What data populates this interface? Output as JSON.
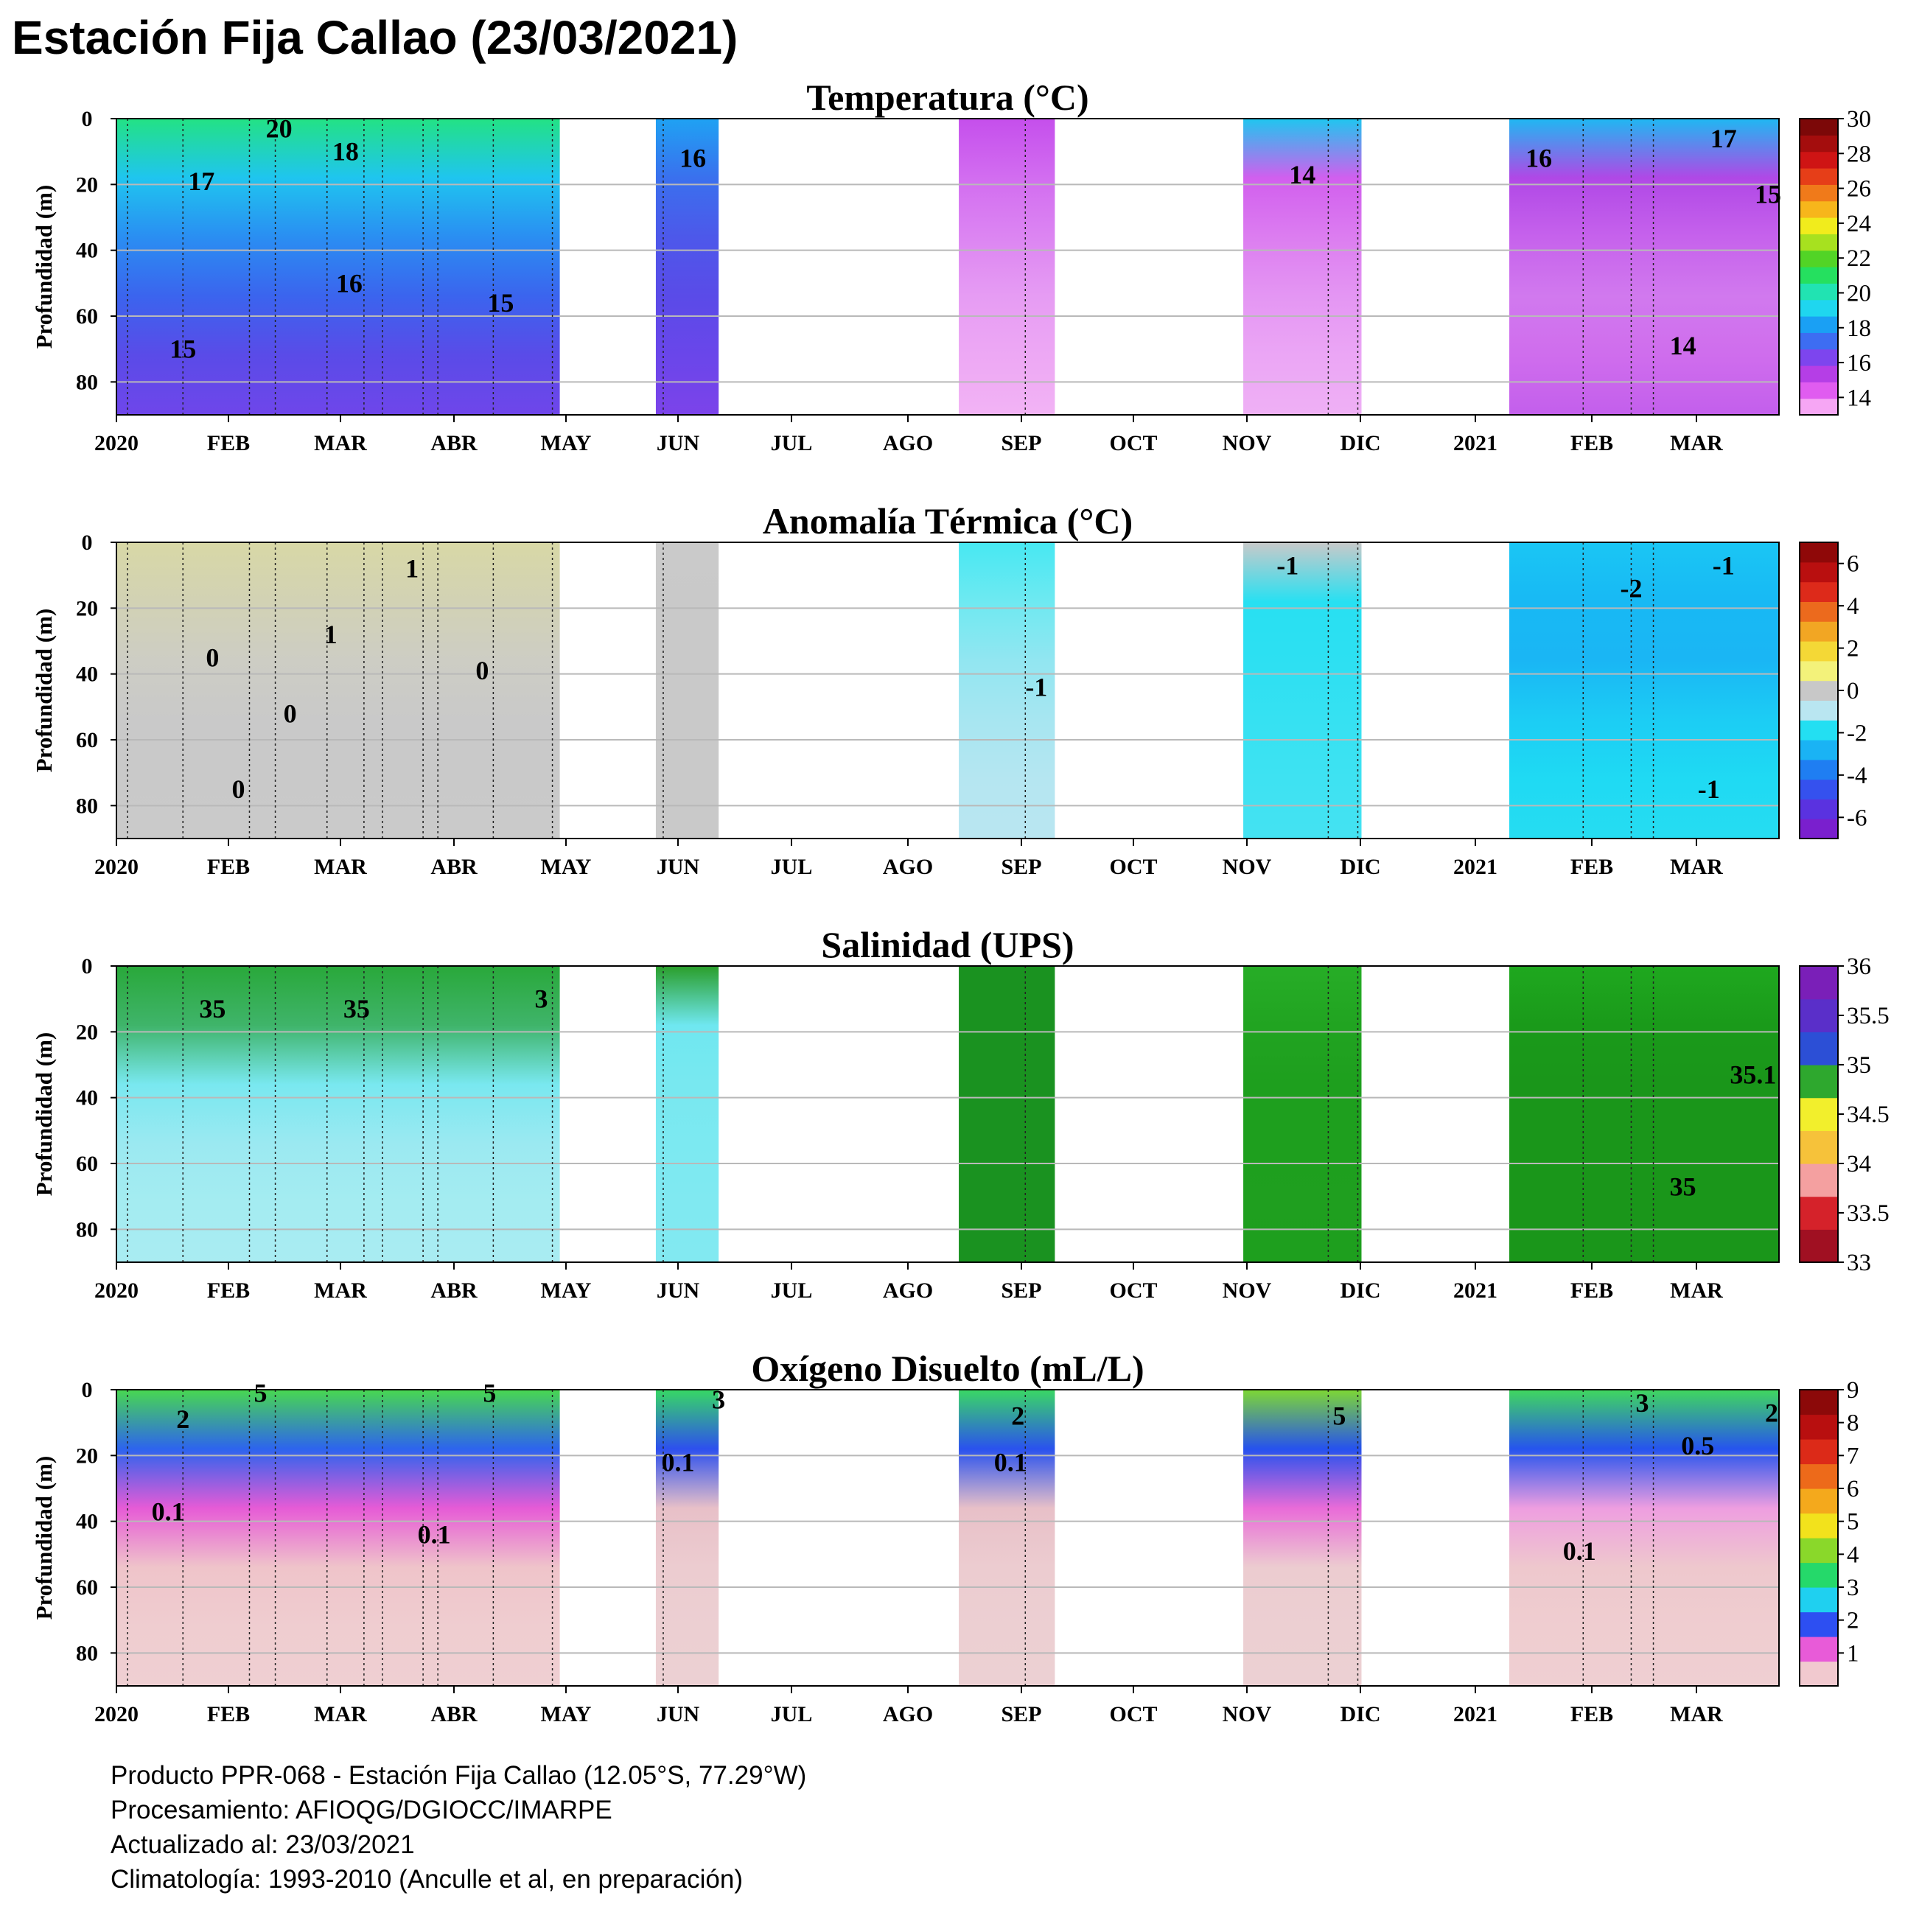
{
  "title": "Estación Fija Callao (23/03/2021)",
  "footer": [
    "Producto PPR-068 - Estación Fija Callao (12.05°S, 77.29°W)",
    "Procesamiento: AFIOQG/DGIOCC/IMARPE",
    "Actualizado al: 23/03/2021",
    "Climatología: 1993-2010 (Anculle et al, en preparación)"
  ],
  "chart_data": [
    {
      "type": "heatmap",
      "title": "Temperatura (°C)",
      "ylabel": "Profundidad (m)",
      "x_ticks": [
        "2020",
        "FEB",
        "MAR",
        "ABR",
        "MAY",
        "JUN",
        "JUL",
        "AGO",
        "SEP",
        "OCT",
        "NOV",
        "DIC",
        "2021",
        "FEB",
        "MAR"
      ],
      "y_ticks": [
        "0",
        "20",
        "40",
        "60",
        "80"
      ],
      "ylim": [
        90,
        0
      ],
      "colorbar": {
        "min": 13,
        "max": 30,
        "ticks": [
          "14",
          "16",
          "18",
          "20",
          "22",
          "24",
          "26",
          "28",
          "30"
        ],
        "colors": [
          "#f6a6f4",
          "#e05cf0",
          "#b53ee6",
          "#7d45ee",
          "#3d6df2",
          "#1aa0f4",
          "#1fd6ef",
          "#21e3b2",
          "#25e05f",
          "#52d426",
          "#a7e11f",
          "#f1ec1c",
          "#f7b61b",
          "#f07a1a",
          "#e63e18",
          "#cf1414",
          "#a40d0d",
          "#7c0808"
        ]
      },
      "sampling_segments": [
        {
          "start": "2020-01-01",
          "end": "2020-04-30",
          "colors": [
            "#23e284",
            "#1fc5ef",
            "#2a8ef2",
            "#3b64ee",
            "#5a4be8",
            "#6f46ea"
          ]
        },
        {
          "start": "2020-05-26",
          "end": "2020-06-12",
          "colors": [
            "#1fa2f3",
            "#3a70ee",
            "#4d58ea",
            "#5a4be8",
            "#6a46ea",
            "#7c43ea"
          ]
        },
        {
          "start": "2020-08-16",
          "end": "2020-09-11",
          "colors": [
            "#c54fec",
            "#d26df0",
            "#dc85f2",
            "#e69cf3",
            "#eda8f4",
            "#f2b3f5"
          ]
        },
        {
          "start": "2020-11-01",
          "end": "2020-12-03",
          "colors": [
            "#1fc6ef",
            "#d15fee",
            "#dc7df0",
            "#e496f3",
            "#eba6f5",
            "#efb0f5"
          ]
        },
        {
          "start": "2021-01-12",
          "end": "2021-03-26",
          "colors": [
            "#1fb8f2",
            "#b048e6",
            "#c662ec",
            "#d179ee",
            "#cf6ded",
            "#c35fec"
          ]
        }
      ],
      "sample_dates": [
        "2020-01-04",
        "2020-01-19",
        "2020-02-06",
        "2020-02-13",
        "2020-02-27",
        "2020-03-08",
        "2020-03-13",
        "2020-03-24",
        "2020-03-28",
        "2020-04-12",
        "2020-04-28",
        "2020-05-28",
        "2020-09-03",
        "2020-11-24",
        "2020-12-02",
        "2021-02-01",
        "2021-02-14",
        "2021-02-20"
      ],
      "contour_labels": [
        {
          "text": "20",
          "date": "2020-02-14",
          "depth": 3
        },
        {
          "text": "18",
          "date": "2020-03-03",
          "depth": 10
        },
        {
          "text": "17",
          "date": "2020-01-24",
          "depth": 19
        },
        {
          "text": "16",
          "date": "2020-03-04",
          "depth": 50
        },
        {
          "text": "15",
          "date": "2020-01-19",
          "depth": 70
        },
        {
          "text": "15",
          "date": "2020-04-14",
          "depth": 56
        },
        {
          "text": "16",
          "date": "2020-06-05",
          "depth": 12
        },
        {
          "text": "14",
          "date": "2020-11-17",
          "depth": 17
        },
        {
          "text": "16",
          "date": "2021-01-20",
          "depth": 12
        },
        {
          "text": "17",
          "date": "2021-03-11",
          "depth": 6
        },
        {
          "text": "15",
          "date": "2021-03-23",
          "depth": 23
        },
        {
          "text": "14",
          "date": "2021-02-28",
          "depth": 69
        }
      ]
    },
    {
      "type": "heatmap",
      "title": "Anomalía Térmica (°C)",
      "ylabel": "Profundidad (m)",
      "x_ticks": [
        "2020",
        "FEB",
        "MAR",
        "ABR",
        "MAY",
        "JUN",
        "JUL",
        "AGO",
        "SEP",
        "OCT",
        "NOV",
        "DIC",
        "2021",
        "FEB",
        "MAR"
      ],
      "y_ticks": [
        "0",
        "20",
        "40",
        "60",
        "80"
      ],
      "ylim": [
        90,
        0
      ],
      "colorbar": {
        "min": -7,
        "max": 7,
        "ticks": [
          "6",
          "4",
          "2",
          "0",
          "-2",
          "-4",
          "-6"
        ],
        "colors": [
          "#7a1fce",
          "#5a32e0",
          "#3551ee",
          "#1f7ef2",
          "#1ab3f4",
          "#23dff2",
          "#b9e6f1",
          "#c8c8c8",
          "#f3f27a",
          "#f4d836",
          "#f2a623",
          "#ec6a1d",
          "#dd2a1a",
          "#b90f0f",
          "#8f0808"
        ]
      },
      "sampling_segments": [
        {
          "start": "2020-01-01",
          "end": "2020-04-30",
          "colors": [
            "#d8d8a6",
            "#d2d2b4",
            "#cdcdc4",
            "#c9c9c9",
            "#c9c9c9",
            "#cacaca"
          ]
        },
        {
          "start": "2020-05-26",
          "end": "2020-06-12",
          "colors": [
            "#cacaca",
            "#c9c9c9",
            "#c9c9c9",
            "#c9c9c9",
            "#c9c9c9",
            "#c9c9c9"
          ]
        },
        {
          "start": "2020-08-16",
          "end": "2020-09-11",
          "colors": [
            "#47e8f2",
            "#6ee9f1",
            "#92e6f1",
            "#a7e6f1",
            "#b5e6f1",
            "#b9e6f1"
          ]
        },
        {
          "start": "2020-11-01",
          "end": "2020-12-03",
          "colors": [
            "#c9c9c9",
            "#28e0f2",
            "#2de0f2",
            "#36e1f2",
            "#3ee2f2",
            "#44e2f2"
          ]
        },
        {
          "start": "2021-01-12",
          "end": "2021-03-26",
          "colors": [
            "#1ac6f4",
            "#18b9f4",
            "#1ab6f4",
            "#1ccdf4",
            "#1fdaf3",
            "#26dcf2"
          ]
        }
      ],
      "sample_dates": [
        "2020-01-04",
        "2020-01-19",
        "2020-02-06",
        "2020-02-13",
        "2020-02-27",
        "2020-03-08",
        "2020-03-13",
        "2020-03-24",
        "2020-03-28",
        "2020-04-12",
        "2020-04-28",
        "2020-05-28",
        "2020-09-03",
        "2020-11-24",
        "2020-12-02",
        "2021-02-01",
        "2021-02-14",
        "2021-02-20"
      ],
      "contour_labels": [
        {
          "text": "1",
          "date": "2020-03-21",
          "depth": 8
        },
        {
          "text": "1",
          "date": "2020-02-28",
          "depth": 28
        },
        {
          "text": "0",
          "date": "2020-01-27",
          "depth": 35
        },
        {
          "text": "0",
          "date": "2020-02-17",
          "depth": 52
        },
        {
          "text": "0",
          "date": "2020-04-09",
          "depth": 39
        },
        {
          "text": "0",
          "date": "2020-02-03",
          "depth": 75
        },
        {
          "text": "-1",
          "date": "2020-09-06",
          "depth": 44
        },
        {
          "text": "-1",
          "date": "2020-11-13",
          "depth": 7
        },
        {
          "text": "-2",
          "date": "2021-02-14",
          "depth": 14
        },
        {
          "text": "-1",
          "date": "2021-03-11",
          "depth": 7
        },
        {
          "text": "-1",
          "date": "2021-03-07",
          "depth": 75
        }
      ]
    },
    {
      "type": "heatmap",
      "title": "Salinidad (UPS)",
      "ylabel": "Profundidad (m)",
      "x_ticks": [
        "2020",
        "FEB",
        "MAR",
        "ABR",
        "MAY",
        "JUN",
        "JUL",
        "AGO",
        "SEP",
        "OCT",
        "NOV",
        "DIC",
        "2021",
        "FEB",
        "MAR"
      ],
      "y_ticks": [
        "0",
        "20",
        "40",
        "60",
        "80"
      ],
      "ylim": [
        90,
        0
      ],
      "colorbar": {
        "min": 33,
        "max": 36,
        "ticks": [
          "36",
          "35.5",
          "35",
          "34.5",
          "34",
          "33.5",
          "33"
        ],
        "colors": [
          "#a01022",
          "#d5222a",
          "#f4a0a0",
          "#f6c23a",
          "#f2ef2c",
          "#2ea82e",
          "#2c4fd6",
          "#5a2fc9",
          "#7a1fb8"
        ]
      },
      "sampling_segments": [
        {
          "start": "2020-01-01",
          "end": "2020-04-30",
          "colors": [
            "#29a83a",
            "#3fb46a",
            "#79e8f0",
            "#9be9f1",
            "#a4ecf1",
            "#a9ecf2"
          ]
        },
        {
          "start": "2020-05-26",
          "end": "2020-06-12",
          "colors": [
            "#2a9e2a",
            "#6fe7f0",
            "#78e8f0",
            "#7ce9f1",
            "#80e9f1",
            "#82e9f1"
          ]
        },
        {
          "start": "2020-08-16",
          "end": "2020-09-11",
          "colors": [
            "#1a9220",
            "#1a9220",
            "#1a9220",
            "#1a9220",
            "#1a9220",
            "#1a9220"
          ]
        },
        {
          "start": "2020-11-01",
          "end": "2020-12-03",
          "colors": [
            "#27ad27",
            "#21a421",
            "#1e9f1e",
            "#1e9f1e",
            "#1f9f1f",
            "#1e9f1e"
          ]
        },
        {
          "start": "2021-01-12",
          "end": "2021-03-26",
          "colors": [
            "#1fa81f",
            "#1a9a1a",
            "#1a961a",
            "#1a961a",
            "#1a961a",
            "#1a961a"
          ]
        }
      ],
      "sample_dates": [
        "2020-01-04",
        "2020-01-19",
        "2020-02-06",
        "2020-02-13",
        "2020-02-27",
        "2020-03-08",
        "2020-03-13",
        "2020-03-24",
        "2020-03-28",
        "2020-04-12",
        "2020-04-28",
        "2020-05-28",
        "2020-09-03",
        "2020-11-24",
        "2020-12-02",
        "2021-02-01",
        "2021-02-14",
        "2021-02-20"
      ],
      "contour_labels": [
        {
          "text": "35",
          "date": "2020-01-27",
          "depth": 13
        },
        {
          "text": "35",
          "date": "2020-03-06",
          "depth": 13
        },
        {
          "text": "3",
          "date": "2020-04-25",
          "depth": 10
        },
        {
          "text": "35.1",
          "date": "2021-03-19",
          "depth": 33
        },
        {
          "text": "35",
          "date": "2021-02-28",
          "depth": 67
        }
      ]
    },
    {
      "type": "heatmap",
      "title": "Oxígeno Disuelto (mL/L)",
      "ylabel": "Profundidad (m)",
      "x_ticks": [
        "2020",
        "FEB",
        "MAR",
        "ABR",
        "MAY",
        "JUN",
        "JUL",
        "AGO",
        "SEP",
        "OCT",
        "NOV",
        "DIC",
        "2021",
        "FEB",
        "MAR"
      ],
      "y_ticks": [
        "0",
        "20",
        "40",
        "60",
        "80"
      ],
      "ylim": [
        90,
        0
      ],
      "colorbar": {
        "min": 0,
        "max": 9,
        "ticks": [
          "9",
          "8",
          "7",
          "6",
          "5",
          "4",
          "3",
          "2",
          "1"
        ],
        "colors": [
          "#f1c9cf",
          "#e85bd8",
          "#2d4ff2",
          "#1fd0f0",
          "#25d96a",
          "#8ad82a",
          "#f2e21c",
          "#f4a91c",
          "#ed6a1a",
          "#dc2a18",
          "#b80f0f",
          "#8c0909"
        ]
      },
      "sampling_segments": [
        {
          "start": "2020-01-01",
          "end": "2020-04-30",
          "colors": [
            "#48d850",
            "#2d64ee",
            "#e65bd6",
            "#efc4ca",
            "#efcdd0",
            "#efcfd2"
          ]
        },
        {
          "start": "2020-05-26",
          "end": "2020-06-12",
          "colors": [
            "#37d864",
            "#2d50ee",
            "#e8c0c8",
            "#ecccd0",
            "#eccfd2",
            "#ecd0d3"
          ]
        },
        {
          "start": "2020-08-16",
          "end": "2020-09-11",
          "colors": [
            "#3ad864",
            "#2a52ee",
            "#e8c0c8",
            "#ecccd0",
            "#eccfd2",
            "#ecd0d3"
          ]
        },
        {
          "start": "2020-11-01",
          "end": "2020-12-03",
          "colors": [
            "#7ed834",
            "#2652ee",
            "#e96bd8",
            "#ecccd0",
            "#eccfd2",
            "#ecd0d3"
          ]
        },
        {
          "start": "2021-01-12",
          "end": "2021-03-26",
          "colors": [
            "#40d85e",
            "#2654ee",
            "#ee9ee0",
            "#eec8cd",
            "#efcdd0",
            "#efcfd2"
          ]
        }
      ],
      "sample_dates": [
        "2020-01-04",
        "2020-01-19",
        "2020-02-06",
        "2020-02-13",
        "2020-02-27",
        "2020-03-08",
        "2020-03-13",
        "2020-03-24",
        "2020-03-28",
        "2020-04-12",
        "2020-04-28",
        "2020-05-28",
        "2020-09-03",
        "2020-11-24",
        "2020-12-02",
        "2021-02-01",
        "2021-02-14",
        "2021-02-20"
      ],
      "contour_labels": [
        {
          "text": "5",
          "date": "2020-02-09",
          "depth": 1
        },
        {
          "text": "5",
          "date": "2020-04-11",
          "depth": 1
        },
        {
          "text": "2",
          "date": "2020-01-19",
          "depth": 9
        },
        {
          "text": "0.1",
          "date": "2020-01-15",
          "depth": 37
        },
        {
          "text": "0.1",
          "date": "2020-03-27",
          "depth": 44
        },
        {
          "text": "3",
          "date": "2020-06-12",
          "depth": 3
        },
        {
          "text": "0.1",
          "date": "2020-06-01",
          "depth": 22
        },
        {
          "text": "2",
          "date": "2020-09-01",
          "depth": 8
        },
        {
          "text": "0.1",
          "date": "2020-08-30",
          "depth": 22
        },
        {
          "text": "5",
          "date": "2020-11-27",
          "depth": 8
        },
        {
          "text": "3",
          "date": "2021-02-17",
          "depth": 4
        },
        {
          "text": "2",
          "date": "2021-03-24",
          "depth": 7
        },
        {
          "text": "0.5",
          "date": "2021-03-04",
          "depth": 17
        },
        {
          "text": "0.1",
          "date": "2021-01-31",
          "depth": 49
        }
      ]
    }
  ]
}
